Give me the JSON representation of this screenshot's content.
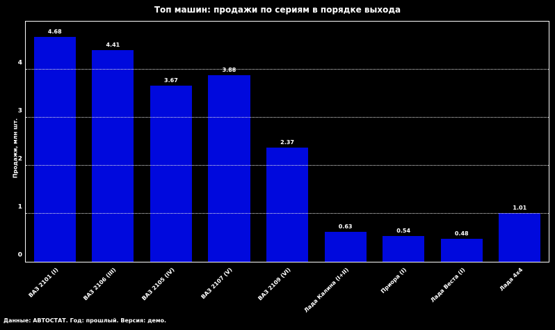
{
  "colors": {
    "background": "#000000",
    "bar": "#0009dd",
    "text": "#ffffff",
    "grid": "#e8e8e8"
  },
  "footnote": "Данные: АВТОСТАТ. Год: прошлый. Версия: демо.",
  "chart_data": {
    "type": "bar",
    "title": "Топ машин: продажи по сериям в порядке выхода",
    "xlabel": "",
    "ylabel": "Продажи, млн шт.",
    "categories": [
      "ВАЗ 2101 (I)",
      "ВАЗ 2106 (III)",
      "ВАЗ 2105 (IV)",
      "ВАЗ 2107 (V)",
      "ВАЗ 2109 (VI)",
      "Лада Калина (I+II)",
      "Приора (I)",
      "Лада Веста (I)",
      "Лада 4x4"
    ],
    "values": [
      4.68,
      4.41,
      3.67,
      3.88,
      2.37,
      0.63,
      0.54,
      0.48,
      1.01
    ],
    "bar_labels": [
      "4.68",
      "4.41",
      "3.67",
      "3.88",
      "2.37",
      "0.63",
      "0.54",
      "0.48",
      "1.01"
    ],
    "ylim": [
      0,
      5
    ],
    "yticks": [
      0,
      1,
      2,
      3,
      4
    ],
    "grid": "horizontal dotted, drawn over bars",
    "legend": "none",
    "bar_color": "#0009dd",
    "background": "#000000"
  }
}
